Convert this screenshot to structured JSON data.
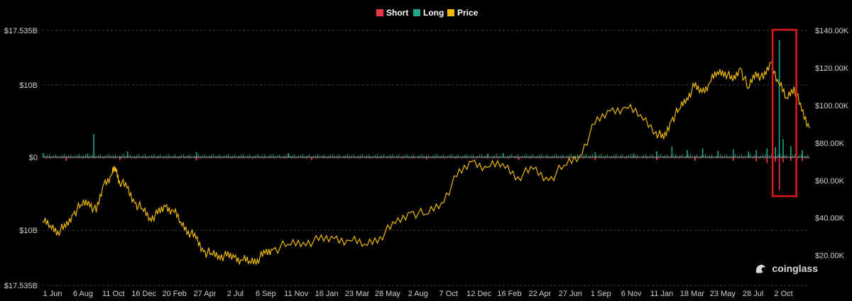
{
  "legend": [
    {
      "label": "Short",
      "color": "#f23645"
    },
    {
      "label": "Long",
      "color": "#1fa88a"
    },
    {
      "label": "Price",
      "color": "#f0b90b"
    }
  ],
  "watermark": {
    "text": "coinglass",
    "icon": "coinglass-logo-icon"
  },
  "colors": {
    "background": "#000000",
    "grid": "#3a3a3a",
    "highlight_box": "#e0191c"
  },
  "chart_data": {
    "type": "bar",
    "title": "",
    "x_tick_labels": [
      "1 Jun",
      "6 Aug",
      "11 Oct",
      "16 Dec",
      "20 Feb",
      "27 Apr",
      "2 Jul",
      "6 Sep",
      "11 Nov",
      "16 Jan",
      "23 Mar",
      "28 May",
      "2 Aug",
      "7 Oct",
      "12 Dec",
      "16 Feb",
      "22 Apr",
      "27 Jun",
      "1 Sep",
      "6 Nov",
      "11 Jan",
      "18 Mar",
      "23 May",
      "28 Jul",
      "2 Oct"
    ],
    "left_axis": {
      "ylim": [
        -17.535,
        17.535
      ],
      "unit": "B",
      "tick_labels": [
        "$17.535B",
        "$10B",
        "$0",
        "$10B",
        "$17.535B"
      ],
      "tick_values": [
        17.535,
        10,
        0,
        -10,
        -17.535
      ]
    },
    "right_axis": {
      "ylim": [
        4000,
        140000
      ],
      "tick_labels": [
        "$140.00K",
        "$120.00K",
        "$100.00K",
        "$80.00K",
        "$60.00K",
        "$40.00K",
        "$20.00K"
      ],
      "tick_values": [
        140000,
        120000,
        100000,
        80000,
        60000,
        40000,
        20000
      ]
    },
    "grid": true,
    "legend_position": "top-center",
    "highlight": {
      "x_range_fraction": [
        0.952,
        0.983
      ],
      "note": "red rectangle around Oct 2025 liquidation spike"
    },
    "series": [
      {
        "name": "Price",
        "type": "line",
        "axis": "right",
        "x": [
          0,
          0.01,
          0.02,
          0.03,
          0.04,
          0.05,
          0.06,
          0.07,
          0.08,
          0.09,
          0.095,
          0.1,
          0.11,
          0.12,
          0.13,
          0.14,
          0.15,
          0.16,
          0.17,
          0.18,
          0.19,
          0.2,
          0.21,
          0.22,
          0.23,
          0.24,
          0.25,
          0.26,
          0.27,
          0.28,
          0.29,
          0.3,
          0.32,
          0.34,
          0.36,
          0.38,
          0.4,
          0.42,
          0.44,
          0.46,
          0.48,
          0.5,
          0.52,
          0.54,
          0.56,
          0.58,
          0.6,
          0.62,
          0.64,
          0.66,
          0.68,
          0.7,
          0.72,
          0.74,
          0.76,
          0.78,
          0.8,
          0.81,
          0.82,
          0.83,
          0.84,
          0.85,
          0.86,
          0.87,
          0.88,
          0.89,
          0.9,
          0.91,
          0.92,
          0.93,
          0.94,
          0.95,
          0.96,
          0.97,
          0.98,
          0.99,
          1.0
        ],
        "values": [
          38000,
          36000,
          33000,
          35000,
          42000,
          47000,
          49000,
          43000,
          58000,
          63000,
          67000,
          60000,
          56000,
          48000,
          45000,
          40000,
          42000,
          46000,
          44000,
          38000,
          33000,
          29000,
          22000,
          21000,
          20000,
          19500,
          19000,
          17500,
          17000,
          18000,
          21000,
          23000,
          26000,
          27000,
          28000,
          29000,
          28000,
          26000,
          30000,
          37000,
          43000,
          42000,
          48000,
          62000,
          70000,
          67000,
          69000,
          62000,
          66000,
          60000,
          68000,
          73000,
          90000,
          97000,
          99000,
          95000,
          86000,
          82000,
          92000,
          98000,
          104000,
          110000,
          107000,
          112000,
          118000,
          118000,
          113000,
          120000,
          109000,
          118000,
          114000,
          123000,
          112000,
          104000,
          110000,
          97000,
          88000
        ]
      },
      {
        "name": "Long",
        "type": "bar",
        "axis": "left",
        "x": [
          0.0,
          0.058,
          0.066,
          0.11,
          0.2,
          0.32,
          0.58,
          0.6,
          0.72,
          0.77,
          0.8,
          0.82,
          0.84,
          0.86,
          0.88,
          0.9,
          0.92,
          0.93,
          0.944,
          0.955,
          0.96,
          0.965,
          0.975,
          0.99
        ],
        "values": [
          0.6,
          0.5,
          3.2,
          0.8,
          0.7,
          0.6,
          0.5,
          0.6,
          0.7,
          0.5,
          0.8,
          1.5,
          1.0,
          1.2,
          0.9,
          1.1,
          0.8,
          1.0,
          1.2,
          1.4,
          16.2,
          2.5,
          1.5,
          1.0
        ]
      },
      {
        "name": "Short",
        "type": "bar",
        "axis": "left",
        "x": [
          0.03,
          0.1,
          0.2,
          0.35,
          0.5,
          0.62,
          0.72,
          0.8,
          0.85,
          0.9,
          0.93,
          0.944,
          0.955,
          0.96,
          0.965,
          0.975,
          0.99
        ],
        "values": [
          -0.5,
          -0.4,
          -0.4,
          -0.4,
          -0.3,
          -0.4,
          -0.4,
          -0.4,
          -0.5,
          -0.5,
          -0.6,
          -0.8,
          -0.6,
          -4.5,
          -0.7,
          -0.5,
          -0.5
        ]
      }
    ]
  }
}
